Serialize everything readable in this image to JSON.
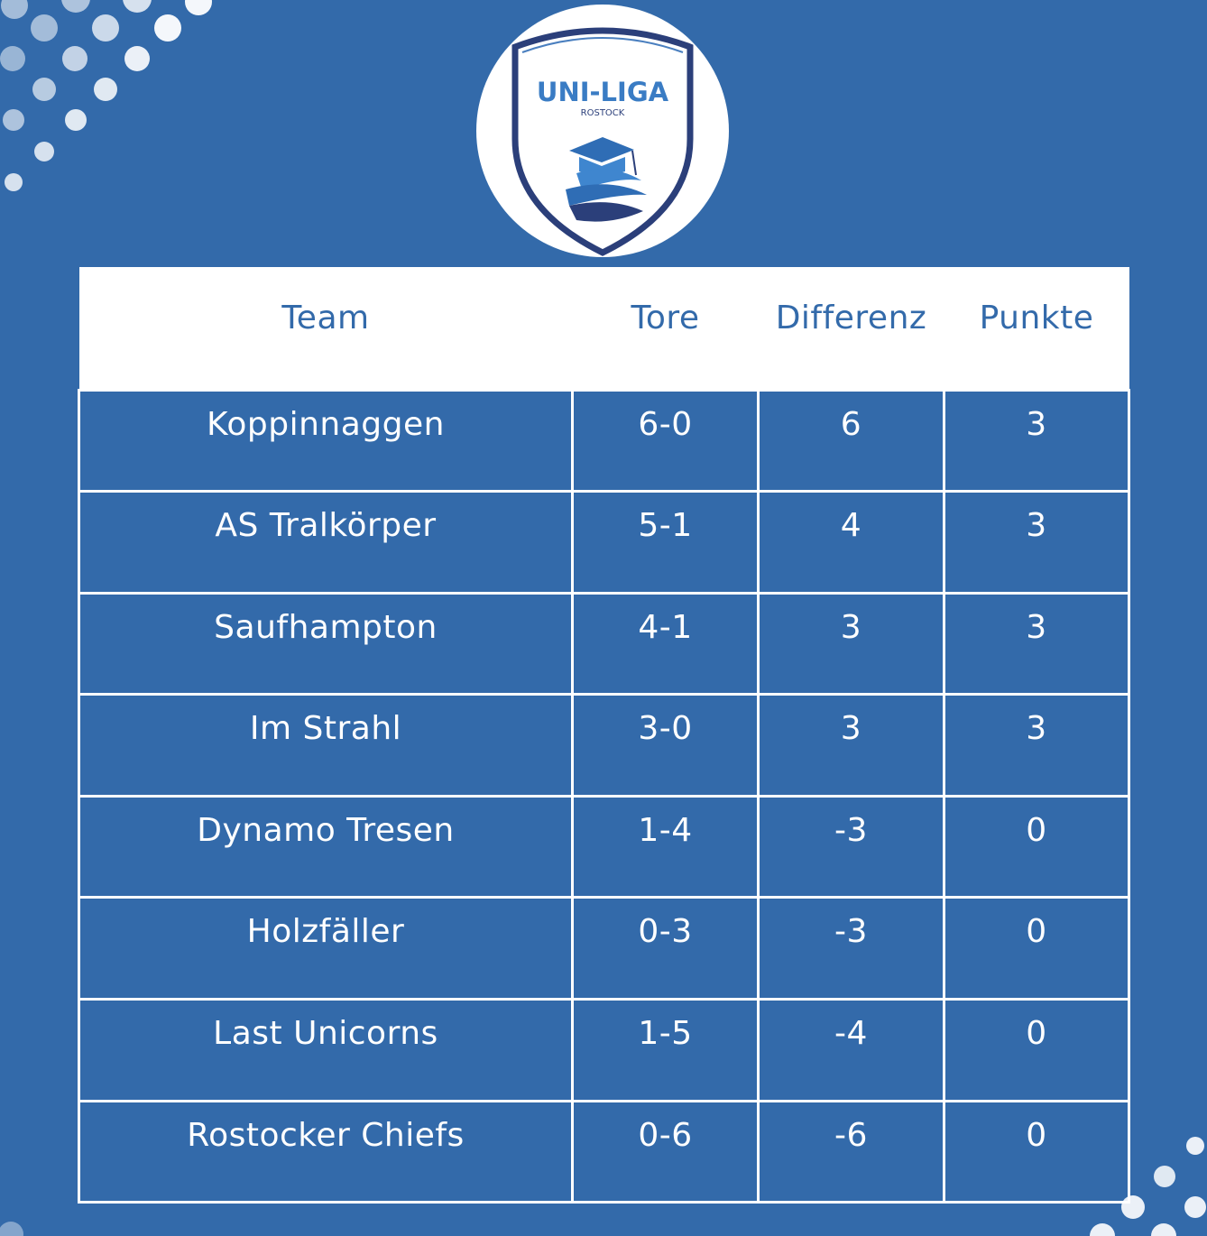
{
  "logo": {
    "title": "UNI-LIGA",
    "subtitle": "ROSTOCK"
  },
  "table": {
    "headers": {
      "team": "Team",
      "tore": "Tore",
      "differenz": "Differenz",
      "punkte": "Punkte"
    },
    "rows": [
      {
        "team": "Koppinnaggen",
        "tore": "6-0",
        "differenz": "6",
        "punkte": "3"
      },
      {
        "team": "AS Tralkörper",
        "tore": "5-1",
        "differenz": "4",
        "punkte": "3"
      },
      {
        "team": "Saufhampton",
        "tore": "4-1",
        "differenz": "3",
        "punkte": "3"
      },
      {
        "team": "Im Strahl",
        "tore": "3-0",
        "differenz": "3",
        "punkte": "3"
      },
      {
        "team": "Dynamo Tresen",
        "tore": "1-4",
        "differenz": "-3",
        "punkte": "0"
      },
      {
        "team": "Holzfäller",
        "tore": "0-3",
        "differenz": "-3",
        "punkte": "0"
      },
      {
        "team": "Last Unicorns",
        "tore": "1-5",
        "differenz": "-4",
        "punkte": "0"
      },
      {
        "team": "Rostocker Chiefs",
        "tore": "0-6",
        "differenz": "-6",
        "punkte": "0"
      }
    ]
  },
  "colors": {
    "background": "#336aaa",
    "text_light": "#ffffff",
    "header_bg": "#ffffff",
    "header_text": "#336aaa",
    "logo_navy": "#2b3f7a"
  }
}
